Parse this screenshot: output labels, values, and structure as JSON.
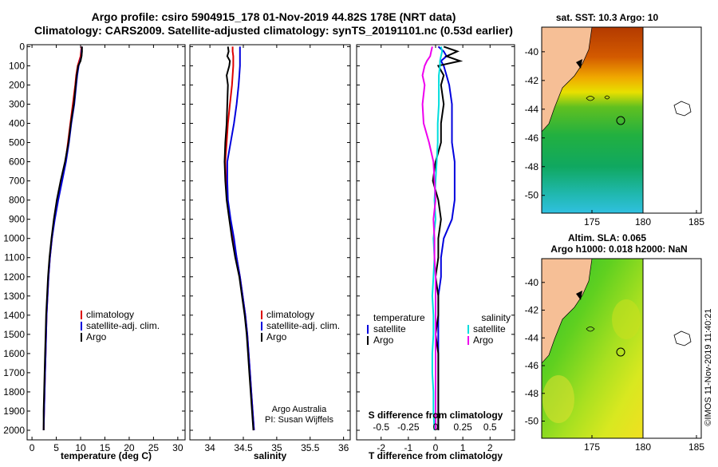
{
  "title_line1": "Argo profile: csiro 5904915_178 01-Nov-2019 44.82S 178E (NRT data)",
  "title_line2": "Climatology: CARS2009. Satellite-adjusted climatology: synTS_20191101.nc (0.53d earlier)",
  "depth_ticks": [
    "0",
    "100",
    "200",
    "300",
    "400",
    "500",
    "600",
    "700",
    "800",
    "900",
    "1000",
    "1100",
    "1200",
    "1300",
    "1400",
    "1500",
    "1600",
    "1700",
    "1800",
    "1900",
    "2000"
  ],
  "colors": {
    "climatology": "#dd0000",
    "satellite": "#0000dd",
    "argo": "#000000",
    "salinity_sat": "#00dddd",
    "salinity_argo": "#ee00ee",
    "land": "#f6bf96"
  },
  "chart_data": [
    {
      "type": "line",
      "id": "temperature",
      "xlabel": "temperature (deg C)",
      "xlim": [
        -1,
        31.5
      ],
      "ylim": [
        2050,
        -10
      ],
      "xticks": [
        "0",
        "5",
        "10",
        "15",
        "20",
        "25",
        "30"
      ],
      "legend": [
        "climatology",
        "satellite-adj. clim.",
        "Argo"
      ],
      "depth": [
        0,
        25,
        50,
        75,
        100,
        150,
        200,
        300,
        400,
        500,
        600,
        700,
        800,
        900,
        1000,
        1100,
        1200,
        1300,
        1400,
        1500,
        1600,
        1700,
        1800,
        1900,
        2000
      ],
      "series": [
        {
          "name": "climatology",
          "values": [
            10.2,
            10.1,
            10.0,
            9.7,
            9.4,
            9.1,
            8.9,
            8.4,
            7.9,
            7.4,
            6.9,
            6.1,
            5.3,
            4.6,
            4.1,
            3.7,
            3.4,
            3.2,
            3.0,
            2.9,
            2.8,
            2.7,
            2.6,
            2.5,
            2.4
          ]
        },
        {
          "name": "satellite-adj. clim.",
          "values": [
            10.3,
            10.2,
            10.2,
            9.9,
            9.6,
            9.3,
            9.1,
            8.7,
            8.1,
            7.6,
            7.0,
            6.2,
            5.4,
            4.7,
            4.1,
            3.7,
            3.4,
            3.2,
            3.0,
            2.9,
            2.8,
            2.7,
            2.6,
            2.5,
            2.4
          ]
        },
        {
          "name": "Argo",
          "values": [
            10.3,
            10.3,
            10.2,
            10.0,
            9.5,
            9.2,
            9.0,
            8.6,
            8.0,
            7.5,
            6.8,
            5.9,
            5.1,
            4.5,
            4.0,
            3.6,
            3.3,
            3.1,
            2.9,
            2.8,
            2.7,
            2.6,
            2.5,
            2.4,
            2.4
          ]
        }
      ]
    },
    {
      "type": "line",
      "id": "salinity",
      "xlabel": "salinity",
      "xlim": [
        33.7,
        36.1
      ],
      "ylim": [
        2050,
        -10
      ],
      "xticks": [
        "34",
        "34.5",
        "35",
        "35.5",
        "36"
      ],
      "legend": [
        "climatology",
        "satellite-adj. clim.",
        "Argo"
      ],
      "annotation_line1": "Argo Australia",
      "annotation_line2": "PI: Susan Wijffels",
      "depth": [
        0,
        25,
        50,
        75,
        100,
        150,
        200,
        300,
        400,
        500,
        600,
        700,
        800,
        900,
        1000,
        1100,
        1200,
        1300,
        1400,
        1500,
        1600,
        1700,
        1800,
        1900,
        2000
      ],
      "series": [
        {
          "name": "climatology",
          "values": [
            34.34,
            34.34,
            34.35,
            34.35,
            34.35,
            34.34,
            34.33,
            34.3,
            34.27,
            34.25,
            34.23,
            34.24,
            34.26,
            34.3,
            34.35,
            34.4,
            34.45,
            34.49,
            34.53,
            34.56,
            34.58,
            34.6,
            34.62,
            34.64,
            34.66
          ]
        },
        {
          "name": "satellite-adj. clim.",
          "values": [
            34.45,
            34.45,
            34.45,
            34.45,
            34.45,
            34.44,
            34.43,
            34.4,
            34.36,
            34.31,
            34.26,
            34.26,
            34.27,
            34.31,
            34.36,
            34.4,
            34.45,
            34.49,
            34.53,
            34.56,
            34.58,
            34.6,
            34.62,
            34.64,
            34.66
          ]
        },
        {
          "name": "Argo",
          "values": [
            34.27,
            34.28,
            34.26,
            34.3,
            34.29,
            34.25,
            34.27,
            34.26,
            34.25,
            34.23,
            34.22,
            34.23,
            34.25,
            34.29,
            34.33,
            34.38,
            34.44,
            34.48,
            34.52,
            34.55,
            34.57,
            34.59,
            34.61,
            34.63,
            34.65
          ]
        }
      ]
    },
    {
      "type": "line",
      "id": "differences",
      "xlabel": "T difference from climatology",
      "xlabel_top": "S difference from climatology",
      "xlim": [
        -2.9,
        2.9
      ],
      "ylim": [
        2050,
        -10
      ],
      "xticks": [
        "-2",
        "-1",
        "0",
        "1",
        "2"
      ],
      "xticks_top": [
        "-0.5",
        "-0.25",
        "0",
        "0.25",
        "0.5"
      ],
      "legend_left_title": "temperature",
      "legend_right_title": "salinity",
      "legend_left": [
        "satellite",
        "Argo"
      ],
      "legend_right": [
        "satellite",
        "Argo"
      ],
      "depth": [
        0,
        25,
        50,
        75,
        100,
        150,
        200,
        300,
        400,
        500,
        600,
        700,
        800,
        900,
        1000,
        1100,
        1200,
        1300,
        1400,
        1500,
        1600,
        1700,
        1800,
        1900,
        2000
      ],
      "series": [
        {
          "name": "T satellite",
          "values": [
            0.1,
            0.3,
            0.4,
            0.2,
            0.3,
            0.4,
            0.5,
            0.6,
            0.6,
            0.6,
            0.7,
            0.7,
            0.7,
            0.6,
            0.3,
            0.2,
            0.2,
            0.1,
            0.1,
            0.1,
            0.1,
            0.1,
            0.1,
            0.1,
            0.1
          ]
        },
        {
          "name": "T Argo",
          "values": [
            0.3,
            0.8,
            0.4,
            0.9,
            0.1,
            0.3,
            0.2,
            0.3,
            0.2,
            0.2,
            0.0,
            -0.1,
            0.1,
            0.2,
            0.1,
            0.1,
            0.0,
            0.1,
            0.1,
            0.0,
            0.1,
            0.1,
            0.1,
            0.1,
            0.1
          ]
        },
        {
          "name": "S satellite",
          "values": [
            0.05,
            0.06,
            0.05,
            0.04,
            0.04,
            0.03,
            0.03,
            0.03,
            0.02,
            0.02,
            0.01,
            0.0,
            -0.01,
            0.0,
            -0.02,
            -0.01,
            -0.02,
            -0.03,
            -0.02,
            -0.02,
            -0.03,
            -0.03,
            -0.02,
            -0.02,
            -0.01
          ]
        },
        {
          "name": "S Argo",
          "values": [
            -0.03,
            -0.04,
            -0.05,
            -0.08,
            -0.1,
            -0.12,
            -0.1,
            -0.12,
            -0.11,
            -0.06,
            -0.02,
            -0.01,
            0.0,
            -0.02,
            -0.01,
            -0.01,
            0.0,
            0.0,
            0.0,
            0.0,
            0.0,
            0.0,
            0.0,
            0.0,
            0.0
          ]
        }
      ]
    },
    {
      "type": "heatmap",
      "id": "sst_map",
      "title": "sat. SST: 10.3 Argo: 10",
      "xticks": [
        "175",
        "180",
        "185"
      ],
      "yticks": [
        "-40",
        "-42",
        "-44",
        "-46",
        "-48",
        "-50"
      ]
    },
    {
      "type": "heatmap",
      "id": "sla_map",
      "title_line1": "Altim. SLA: 0.065",
      "title_line2": "Argo h1000: 0.018 h2000: NaN",
      "xticks": [
        "175",
        "180",
        "185"
      ],
      "yticks": [
        "-40",
        "-42",
        "-44",
        "-46",
        "-48",
        "-50"
      ]
    }
  ],
  "watermark": "©IMOS 11-Nov-2019 11:40:21"
}
